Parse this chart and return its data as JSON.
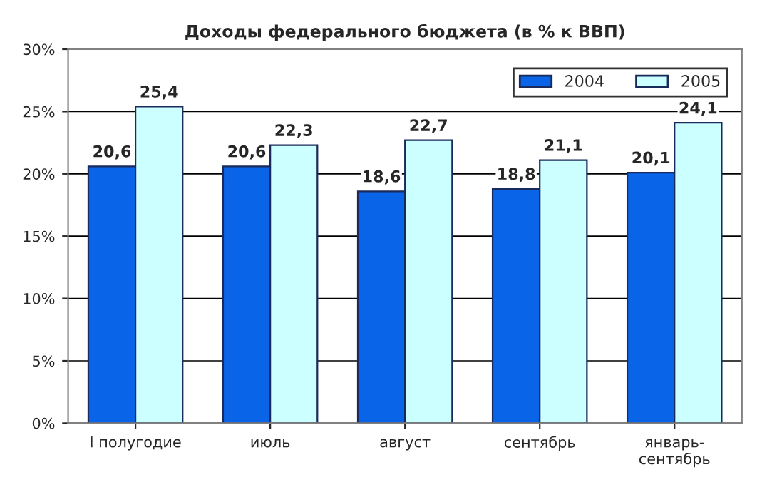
{
  "chart_data": {
    "type": "bar",
    "title": "Доходы федерального бюджета (в % к ВВП)",
    "categories": [
      "I полугодие",
      "июль",
      "август",
      "сентябрь",
      "январь-\nсентябрь"
    ],
    "series": [
      {
        "name": "2004",
        "color": "#0a64e8",
        "values": [
          20.6,
          20.6,
          18.6,
          18.8,
          20.1
        ],
        "value_labels": [
          "20,6",
          "20,6",
          "18,6",
          "18,8",
          "20,1"
        ]
      },
      {
        "name": "2005",
        "color": "#ccffff",
        "values": [
          25.4,
          22.3,
          22.7,
          21.1,
          24.1
        ],
        "value_labels": [
          "25,4",
          "22,3",
          "22,7",
          "21,1",
          "24,1"
        ]
      }
    ],
    "ylim": [
      0,
      30
    ],
    "yticks": [
      {
        "value": 0,
        "label": "0%"
      },
      {
        "value": 5,
        "label": "5%"
      },
      {
        "value": 10,
        "label": "10%"
      },
      {
        "value": 15,
        "label": "15%"
      },
      {
        "value": 20,
        "label": "20%"
      },
      {
        "value": 25,
        "label": "25%"
      },
      {
        "value": 30,
        "label": "30%"
      }
    ],
    "grid": "y",
    "legend": "top right"
  }
}
